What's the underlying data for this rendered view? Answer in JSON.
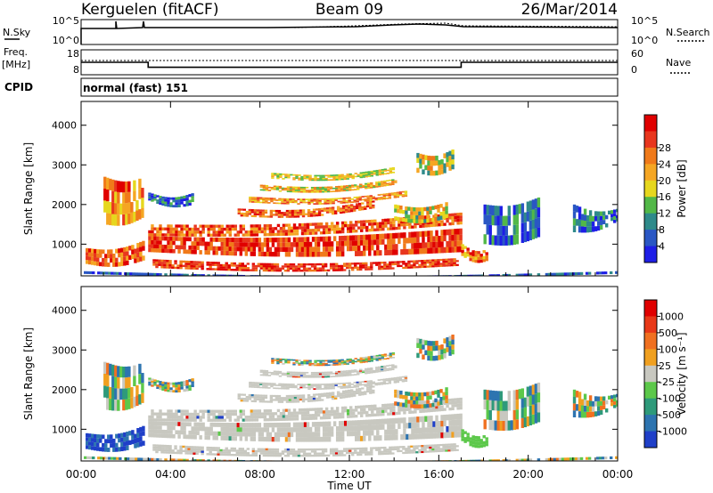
{
  "header": {
    "station": "Kerguelen (fitACF)",
    "beam": "Beam 09",
    "date": "26/Mar/2014"
  },
  "strip_labels": {
    "nsky": "N.Sky",
    "nsearch": "N.Search",
    "freq_top": "Freq.",
    "freq_unit": "[MHz]",
    "nave": "Nave",
    "cpid": "CPID",
    "cpid_value": "normal (fast) 151"
  },
  "strip_ticks": {
    "noise_left": [
      "10^5",
      "10^0"
    ],
    "noise_right": [
      "10^5",
      "10^0"
    ],
    "freq_left": [
      "18",
      "8"
    ],
    "freq_right": [
      "60",
      "0"
    ]
  },
  "chart_data": [
    {
      "type": "heatmap",
      "name": "power-panel",
      "ylabel": "Slant Range [km]",
      "ylim": [
        200,
        4600
      ],
      "y_ticks": [
        "1000",
        "2000",
        "3000",
        "4000"
      ],
      "x_ticks": [
        "00:00",
        "04:00",
        "08:00",
        "12:00",
        "16:00",
        "20:00",
        "00:00"
      ],
      "colorbar": {
        "label": "Power [dB]",
        "ticks": [
          "4",
          "8",
          "12",
          "16",
          "20",
          "24",
          "28"
        ],
        "colors": [
          "#1e1ee6",
          "#2a57c4",
          "#2e8a8a",
          "#52b848",
          "#e6d71e",
          "#f5a623",
          "#f07a1a",
          "#e8361e",
          "#e00000"
        ]
      }
    },
    {
      "type": "heatmap",
      "name": "velocity-panel",
      "ylabel": "Slant Range [km]",
      "xlabel": "Time UT",
      "ylim": [
        200,
        4600
      ],
      "y_ticks": [
        "1000",
        "2000",
        "3000",
        "4000"
      ],
      "x_ticks": [
        "00:00",
        "04:00",
        "08:00",
        "12:00",
        "16:00",
        "20:00",
        "00:00"
      ],
      "colorbar": {
        "label": "Velocity [m s⁻¹]",
        "ticks": [
          "1000",
          "500",
          "100",
          "25",
          "-25",
          "-100",
          "-500",
          "-1000"
        ],
        "colors": [
          "#1f3fc8",
          "#2d74b0",
          "#2e9a7a",
          "#5cc84a",
          "#c8c8c0",
          "#f0a020",
          "#f07020",
          "#e83818",
          "#e00000"
        ]
      }
    },
    {
      "type": "line",
      "name": "frequency-strip",
      "x": [
        "00:00",
        "03:00",
        "17:00",
        "24:00"
      ],
      "series": [
        {
          "values": [
            13,
            11,
            13,
            13
          ]
        }
      ],
      "ylim": [
        8,
        18
      ]
    }
  ]
}
